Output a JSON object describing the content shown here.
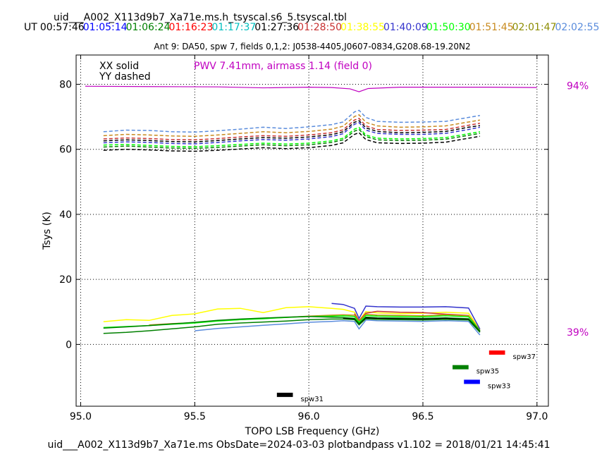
{
  "chart_data": {
    "type": "line",
    "title": "uid___A002_X113d9b7_Xa71e.ms.h_tsyscal.s6_5.tsyscal.tbl",
    "subtitle": "Ant 9: DA50,  spw 7,  fields 0,1,2: J0538-4405,J0607-0834,G208.68-19.20N2",
    "xlabel": "TOPO LSB Frequency (GHz)",
    "ylabel": "Tsys (K)",
    "footer": "uid___A002_X113d9b7_Xa71e.ms  ObsDate=2024-03-03   plotbandpass v1.102 = 2018/01/21 14:45:41",
    "xlim": [
      94.98,
      97.05
    ],
    "ylim": [
      -19,
      89
    ],
    "xticks": [
      95.0,
      95.5,
      96.0,
      96.5,
      97.0
    ],
    "xtick_labels": [
      "95.0",
      "95.5",
      "96.0",
      "96.5",
      "97.0"
    ],
    "yticks": [
      0,
      20,
      40,
      60,
      80
    ],
    "ytick_labels": [
      "0",
      "20",
      "40",
      "60",
      "80"
    ],
    "grid": true,
    "legend_text": [
      "XX solid",
      "YY dashed"
    ],
    "ut_prefix": "UT",
    "ut_times": [
      {
        "label": "00:57:46",
        "color": "#000000"
      },
      {
        "label": "01:05:14",
        "color": "#0000ff"
      },
      {
        "label": "01:06:24",
        "color": "#008000"
      },
      {
        "label": "01:16:23",
        "color": "#ff0000"
      },
      {
        "label": "01:17:37",
        "color": "#00bfbf"
      },
      {
        "label": "01:27:36",
        "color": "#000000"
      },
      {
        "label": "01:28:50",
        "color": "#c83232"
      },
      {
        "label": "01:38:55",
        "color": "#ffff00"
      },
      {
        "label": "01:40:09",
        "color": "#3333cc"
      },
      {
        "label": "01:50:30",
        "color": "#00ff00"
      },
      {
        "label": "01:51:45",
        "color": "#c88a1e"
      },
      {
        "label": "02:01:47",
        "color": "#8c8c00"
      },
      {
        "label": "02:02:55",
        "color": "#5a8cdc"
      }
    ],
    "pwv_text": "PWV 7.41mm, airmass 1.14 (field 0)",
    "pwv_color": "#c000c0",
    "atm_percent_labels": [
      "94%",
      "39%"
    ],
    "atm_percent_values": [
      79.6,
      3.8
    ],
    "atm_curve": {
      "color": "#c000c0",
      "x": [
        95.02,
        95.3,
        95.6,
        95.8,
        96.0,
        96.1,
        96.18,
        96.22,
        96.26,
        96.4,
        96.6,
        96.8,
        97.0
      ],
      "y": [
        79.4,
        79.3,
        79.2,
        78.9,
        79.1,
        79.0,
        78.6,
        77.7,
        78.7,
        79.1,
        79.1,
        79.1,
        79.0
      ]
    },
    "series_x": [
      95.1,
      95.2,
      95.3,
      95.4,
      95.5,
      95.6,
      95.7,
      95.8,
      95.9,
      96.0,
      96.1,
      96.15,
      96.2,
      96.22,
      96.25,
      96.3,
      96.4,
      96.5,
      96.6,
      96.7,
      96.75
    ],
    "series": [
      {
        "color": "#5a8cdc",
        "dash": true,
        "y": [
          65.4,
          65.9,
          65.8,
          65.4,
          65.3,
          65.7,
          66.2,
          66.8,
          66.4,
          66.9,
          67.6,
          68.4,
          71.5,
          72.0,
          69.8,
          68.6,
          68.3,
          68.4,
          68.6,
          69.8,
          70.4
        ]
      },
      {
        "color": "#c88a1e",
        "dash": true,
        "y": [
          64.2,
          64.6,
          64.4,
          64.1,
          64.0,
          64.4,
          64.9,
          65.4,
          65.1,
          65.5,
          66.2,
          67.1,
          70.1,
          70.6,
          68.3,
          67.2,
          66.8,
          66.9,
          67.2,
          68.4,
          69.0
        ]
      },
      {
        "color": "#c83232",
        "dash": true,
        "y": [
          63.2,
          63.5,
          63.3,
          63.0,
          62.9,
          63.3,
          63.8,
          64.2,
          64.0,
          64.4,
          65.1,
          66.0,
          69.0,
          69.5,
          67.2,
          66.1,
          65.8,
          65.9,
          66.1,
          67.4,
          68.0
        ]
      },
      {
        "color": "#000000",
        "dash": true,
        "y": [
          62.6,
          62.9,
          62.7,
          62.4,
          62.3,
          62.7,
          63.2,
          63.6,
          63.4,
          63.8,
          64.5,
          65.4,
          68.3,
          68.8,
          66.6,
          65.5,
          65.1,
          65.2,
          65.5,
          66.8,
          67.3
        ]
      },
      {
        "color": "#3333cc",
        "dash": true,
        "y": [
          62.0,
          62.3,
          62.1,
          61.8,
          61.7,
          62.1,
          62.6,
          63.0,
          62.8,
          63.2,
          63.9,
          64.8,
          67.7,
          68.2,
          65.9,
          64.9,
          64.6,
          64.6,
          64.9,
          66.1,
          66.8
        ]
      },
      {
        "color": "#00ff00",
        "dash": true,
        "y": [
          61.3,
          61.5,
          61.2,
          60.9,
          60.8,
          61.1,
          61.5,
          61.9,
          61.6,
          61.9,
          62.6,
          63.4,
          66.2,
          66.7,
          64.4,
          63.4,
          63.2,
          63.3,
          63.6,
          64.8,
          65.4
        ]
      },
      {
        "color": "#008000",
        "dash": true,
        "y": [
          60.7,
          61.0,
          60.7,
          60.4,
          60.3,
          60.6,
          61.0,
          61.4,
          61.1,
          61.4,
          62.1,
          62.9,
          65.6,
          66.1,
          63.9,
          62.9,
          62.7,
          62.8,
          63.1,
          64.3,
          64.9
        ]
      },
      {
        "color": "#000000",
        "dash": true,
        "y": [
          59.7,
          60.0,
          59.8,
          59.5,
          59.4,
          59.7,
          60.1,
          60.5,
          60.2,
          60.5,
          61.2,
          62.0,
          64.6,
          65.1,
          63.0,
          62.0,
          61.8,
          61.9,
          62.2,
          63.4,
          64.0
        ]
      },
      {
        "color": "#ffff00",
        "dash": false,
        "y": [
          7.0,
          7.6,
          7.4,
          8.9,
          9.4,
          10.9,
          11.1,
          9.8,
          11.3,
          11.6,
          11.1,
          10.8,
          9.9,
          7.3,
          10.1,
          9.7,
          9.5,
          9.6,
          9.9,
          9.6,
          4.6
        ]
      },
      {
        "color": "#3333cc",
        "dash": false,
        "y": [
          null,
          null,
          null,
          null,
          null,
          null,
          null,
          null,
          null,
          null,
          12.6,
          12.3,
          11.1,
          8.0,
          11.8,
          11.6,
          11.5,
          11.5,
          11.6,
          11.2,
          4.7
        ]
      },
      {
        "color": "#c83232",
        "dash": false,
        "y": [
          null,
          null,
          null,
          null,
          null,
          null,
          null,
          null,
          null,
          null,
          null,
          null,
          9.5,
          7.3,
          9.6,
          10.2,
          9.9,
          9.8,
          9.3,
          8.9,
          4.3
        ]
      },
      {
        "color": "#c88a1e",
        "dash": false,
        "y": [
          null,
          null,
          6.0,
          6.4,
          6.7,
          7.3,
          7.6,
          8.0,
          8.3,
          8.7,
          9.0,
          9.1,
          9.0,
          7.0,
          9.3,
          9.0,
          8.9,
          8.8,
          9.1,
          8.8,
          4.2
        ]
      },
      {
        "color": "#00ff00",
        "dash": false,
        "y": [
          5.2,
          5.5,
          5.8,
          6.2,
          6.6,
          7.2,
          7.6,
          7.9,
          8.3,
          8.6,
          8.7,
          8.8,
          8.6,
          6.8,
          8.9,
          8.7,
          8.6,
          8.5,
          8.8,
          8.5,
          4.2
        ]
      },
      {
        "color": "#008000",
        "dash": false,
        "y": [
          5.0,
          5.4,
          5.8,
          6.3,
          6.8,
          7.4,
          7.8,
          8.1,
          8.4,
          8.6,
          8.4,
          8.3,
          8.0,
          6.4,
          8.4,
          8.2,
          8.1,
          8.0,
          8.2,
          7.9,
          4.0
        ]
      },
      {
        "color": "#000000",
        "dash": false,
        "y": [
          null,
          null,
          null,
          null,
          null,
          null,
          null,
          null,
          null,
          null,
          null,
          8.0,
          7.8,
          6.1,
          8.2,
          8.0,
          7.9,
          7.8,
          8.0,
          7.7,
          3.9
        ]
      },
      {
        "color": "#008000",
        "dash": false,
        "y": [
          3.4,
          3.7,
          4.2,
          4.8,
          5.4,
          6.2,
          6.6,
          6.9,
          7.2,
          7.6,
          7.8,
          7.8,
          7.6,
          6.0,
          7.9,
          7.7,
          7.6,
          7.5,
          7.7,
          7.5,
          3.7
        ]
      },
      {
        "color": "#5a8cdc",
        "dash": false,
        "y": [
          null,
          null,
          null,
          null,
          4.2,
          4.9,
          5.4,
          5.9,
          6.3,
          6.8,
          7.1,
          7.3,
          7.1,
          4.8,
          7.5,
          7.3,
          7.2,
          7.1,
          7.3,
          7.1,
          2.9
        ]
      }
    ],
    "spw_markers": [
      {
        "label": "spw31",
        "color": "#000000",
        "x0": 95.86,
        "x1": 95.93,
        "y": -15.5
      },
      {
        "label": "spw33",
        "color": "#0000ff",
        "x0": 96.68,
        "x1": 96.75,
        "y": -11.5
      },
      {
        "label": "spw35",
        "color": "#008000",
        "x0": 96.63,
        "x1": 96.7,
        "y": -7.0
      },
      {
        "label": "spw37",
        "color": "#ff0000",
        "x0": 96.79,
        "x1": 96.86,
        "y": -2.5
      }
    ]
  }
}
